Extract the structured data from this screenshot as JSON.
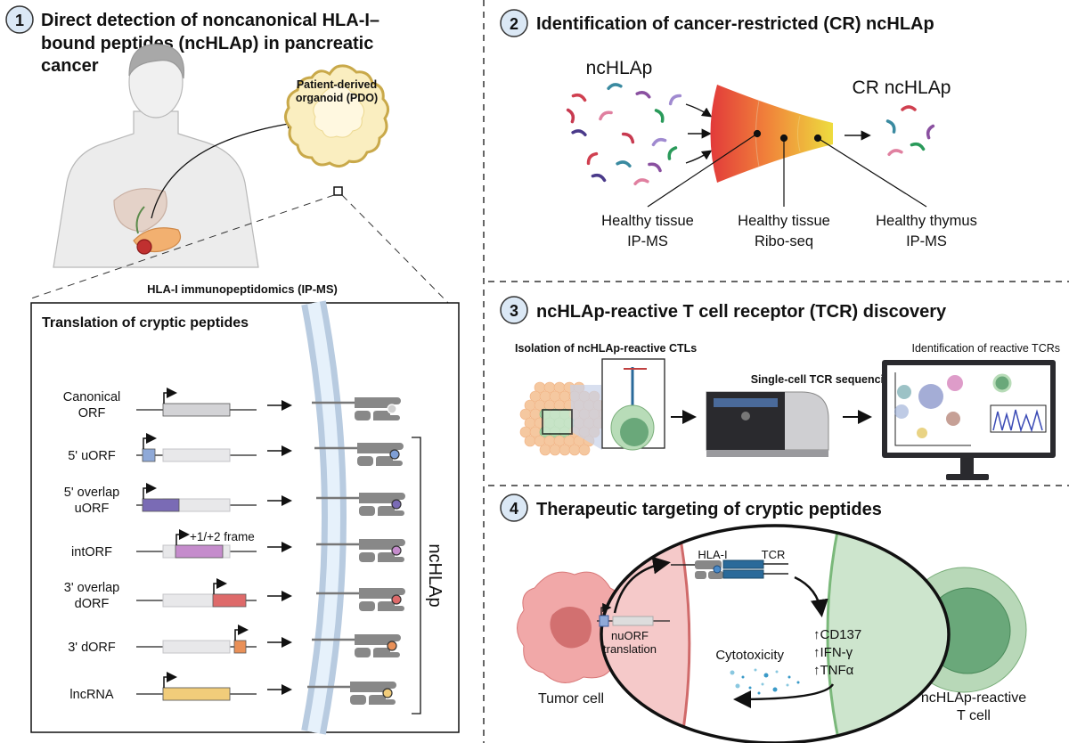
{
  "panel1": {
    "number": "1",
    "title_lines": [
      "Direct detection of noncanonical HLA-I–",
      "bound peptides (ncHLAp) in pancreatic",
      "cancer"
    ],
    "organoid_label_lines": [
      "Patient-derived",
      "organoid (PDO)"
    ],
    "ipms_label": "HLA-I immunopeptidomics (IP-MS)",
    "box_title": "Translation of cryptic peptides",
    "frame_label": "+1/+2 frame",
    "bracket_label": "ncHLAp",
    "orfs": [
      {
        "label_lines": [
          "Canonical",
          "ORF"
        ],
        "color": "#d3d3d6",
        "peptide_color": "#d0d0d0"
      },
      {
        "label_lines": [
          "5' uORF"
        ],
        "color": "#8fa9d8",
        "peptide_color": "#7f9fd6"
      },
      {
        "label_lines": [
          "5' overlap",
          "uORF"
        ],
        "color": "#7a6bb5",
        "peptide_color": "#7a6bb5"
      },
      {
        "label_lines": [
          "intORF"
        ],
        "color": "#c58ccc",
        "peptide_color": "#c58ccc"
      },
      {
        "label_lines": [
          "3' overlap",
          "dORF"
        ],
        "color": "#de6a6a",
        "peptide_color": "#de6a6a"
      },
      {
        "label_lines": [
          "3' dORF"
        ],
        "color": "#e99058",
        "peptide_color": "#e99058"
      },
      {
        "label_lines": [
          "lncRNA"
        ],
        "color": "#f1cc7a",
        "peptide_color": "#f1cc7a"
      }
    ]
  },
  "panel2": {
    "number": "2",
    "title": "Identification of cancer-restricted (CR) ncHLAp",
    "input_label": "ncHLAp",
    "output_label": "CR ncHLAp",
    "filters": [
      {
        "lines": [
          "Healthy tissue",
          "IP-MS"
        ],
        "color": "#e8504a"
      },
      {
        "lines": [
          "Healthy tissue",
          "Ribo-seq"
        ],
        "color": "#f08a3c"
      },
      {
        "lines": [
          "Healthy thymus",
          "IP-MS"
        ],
        "color": "#ecd43c"
      }
    ]
  },
  "panel3": {
    "number": "3",
    "title": "ncHLAp-reactive T cell receptor (TCR) discovery",
    "step1": "Isolation of ncHLAp-reactive CTLs",
    "step2": "Single-cell TCR sequencing",
    "step3": "Identification of reactive TCRs"
  },
  "panel4": {
    "number": "4",
    "title": "Therapeutic targeting of cryptic peptides",
    "hla_label": "HLA-I",
    "tcr_label": "TCR",
    "translation_lines": [
      "nuORF",
      "translation"
    ],
    "markers": [
      "↑CD137",
      "↑IFN-γ",
      "↑TNFα"
    ],
    "cytotoxicity": "Cytotoxicity",
    "tumor_label": "Tumor cell",
    "tcell_label_lines": [
      "ncHLAp-reactive",
      "T cell"
    ]
  },
  "colors": {
    "tumor": "#f2b5b5",
    "tcell": "#b8d8b8",
    "tcr": "#2a6a9a",
    "membrane": "#b8cbe0"
  }
}
